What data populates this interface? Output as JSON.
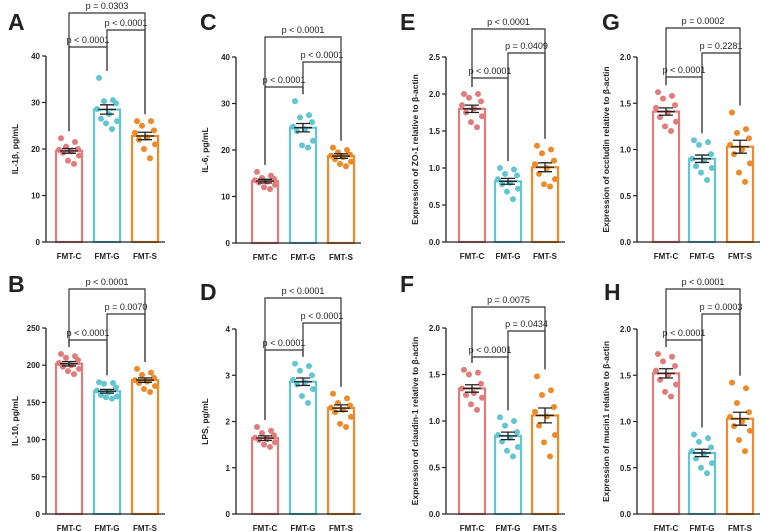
{
  "colors": {
    "FMT-C": "#e27b7b",
    "FMT-G": "#62c6d2",
    "FMT-S": "#f08a28",
    "axis": "#222222"
  },
  "chart_data": [
    {
      "panel": "A",
      "type": "bar",
      "ylabel": "IL-1β, pg/mL",
      "ylim": [
        0,
        40
      ],
      "yticks": [
        "0",
        "10",
        "20",
        "30",
        "40"
      ],
      "ytick_values": [
        0,
        10,
        20,
        30,
        40
      ],
      "categories": [
        "FMT-C",
        "FMT-G",
        "FMT-S"
      ],
      "means": [
        19.6,
        28.5,
        22.8
      ],
      "sem": [
        0.5,
        1.0,
        0.8
      ],
      "points": [
        [
          22.3,
          21.5,
          20.5,
          20,
          19.8,
          19.5,
          19.2,
          18.6,
          17.5,
          16.8
        ],
        [
          35.3,
          30.5,
          30.3,
          29.8,
          28.6,
          27.5,
          26.5,
          26,
          25.5,
          24.3
        ],
        [
          26,
          26,
          25,
          24,
          23.5,
          22.5,
          22,
          21,
          20,
          18
        ]
      ],
      "comparisons": [
        {
          "pair": [
            0,
            2
          ],
          "label": "p = 0.0303"
        },
        {
          "pair": [
            1,
            2
          ],
          "label": "p < 0.0001"
        },
        {
          "pair": [
            0,
            1
          ],
          "label": "p < 0.0001"
        }
      ]
    },
    {
      "panel": "C",
      "type": "bar",
      "ylabel": "IL-6, pg/mL",
      "ylim": [
        0,
        40
      ],
      "yticks": [
        "0",
        "10",
        "20",
        "30",
        "40"
      ],
      "ytick_values": [
        0,
        10,
        20,
        30,
        40
      ],
      "categories": [
        "FMT-C",
        "FMT-G",
        "FMT-S"
      ],
      "means": [
        13.3,
        24.8,
        18.7
      ],
      "sem": [
        0.4,
        0.9,
        0.5
      ],
      "points": [
        [
          15.3,
          14.5,
          14,
          13.8,
          13.5,
          13.2,
          13,
          12.5,
          12,
          11.6
        ],
        [
          30.5,
          27.5,
          27,
          26,
          25,
          24.5,
          24,
          22,
          21,
          20.5
        ],
        [
          20.5,
          20,
          19.5,
          19,
          18.8,
          18.5,
          18,
          17.5,
          17,
          16.5
        ]
      ],
      "comparisons": [
        {
          "pair": [
            0,
            2
          ],
          "label": "p < 0.0001"
        },
        {
          "pair": [
            1,
            2
          ],
          "label": "p < 0.0001"
        },
        {
          "pair": [
            0,
            1
          ],
          "label": "p < 0.0001"
        }
      ]
    },
    {
      "panel": "E",
      "type": "bar",
      "ylabel": "Expression of ZO-1 relative to β-actin",
      "ylim": [
        0,
        2.5
      ],
      "yticks": [
        "0.0",
        "0.5",
        "1.0",
        "1.5",
        "2.0",
        "2.5"
      ],
      "ytick_values": [
        0,
        0.5,
        1,
        1.5,
        2,
        2.5
      ],
      "categories": [
        "FMT-C",
        "FMT-G",
        "FMT-S"
      ],
      "means": [
        1.8,
        0.82,
        1.01
      ],
      "sem": [
        0.05,
        0.04,
        0.06
      ],
      "points": [
        [
          2.0,
          2.0,
          1.95,
          1.9,
          1.85,
          1.8,
          1.75,
          1.7,
          1.62,
          1.55
        ],
        [
          1.0,
          0.98,
          0.92,
          0.9,
          0.85,
          0.8,
          0.78,
          0.72,
          0.68,
          0.58
        ],
        [
          1.3,
          1.25,
          1.2,
          1.1,
          1.05,
          1.0,
          0.92,
          0.85,
          0.78,
          0.75
        ]
      ],
      "comparisons": [
        {
          "pair": [
            0,
            2
          ],
          "label": "p < 0.0001"
        },
        {
          "pair": [
            1,
            2
          ],
          "label": "p = 0.0409"
        },
        {
          "pair": [
            0,
            1
          ],
          "label": "p < 0.0001"
        }
      ]
    },
    {
      "panel": "G",
      "type": "bar",
      "ylabel": "Expression of occludin relative to β-actin",
      "ylim": [
        0,
        2.0
      ],
      "yticks": [
        "0.0",
        "0.5",
        "1.0",
        "1.5",
        "2.0"
      ],
      "ytick_values": [
        0,
        0.5,
        1,
        1.5,
        2
      ],
      "categories": [
        "FMT-C",
        "FMT-G",
        "FMT-S"
      ],
      "means": [
        1.41,
        0.9,
        1.03
      ],
      "sem": [
        0.04,
        0.04,
        0.07
      ],
      "points": [
        [
          1.62,
          1.58,
          1.55,
          1.48,
          1.45,
          1.4,
          1.35,
          1.3,
          1.25,
          1.2
        ],
        [
          1.1,
          1.08,
          1.05,
          0.95,
          0.9,
          0.88,
          0.82,
          0.8,
          0.75,
          0.67
        ],
        [
          1.4,
          1.22,
          1.18,
          1.12,
          1.05,
          1.0,
          0.95,
          0.85,
          0.75,
          0.65
        ]
      ],
      "comparisons": [
        {
          "pair": [
            0,
            2
          ],
          "label": "p = 0.0002"
        },
        {
          "pair": [
            1,
            2
          ],
          "label": "p = 0.2281"
        },
        {
          "pair": [
            0,
            1
          ],
          "label": "p < 0.0001"
        }
      ]
    },
    {
      "panel": "B",
      "type": "bar",
      "ylabel": "IL-10, pg/mL",
      "ylim": [
        0,
        250
      ],
      "yticks": [
        "0",
        "50",
        "100",
        "150",
        "200",
        "250"
      ],
      "ytick_values": [
        0,
        50,
        100,
        150,
        200,
        250
      ],
      "categories": [
        "FMT-C",
        "FMT-G",
        "FMT-S"
      ],
      "means": [
        202,
        165,
        180
      ],
      "sem": [
        3,
        2.5,
        3
      ],
      "points": [
        [
          215,
          212,
          210,
          207,
          203,
          200,
          198,
          195,
          192,
          188
        ],
        [
          177,
          176,
          175,
          170,
          166,
          164,
          160,
          158,
          157,
          155
        ],
        [
          195,
          190,
          187,
          183,
          180,
          178,
          176,
          172,
          168,
          164
        ]
      ],
      "comparisons": [
        {
          "pair": [
            0,
            2
          ],
          "label": "p < 0.0001"
        },
        {
          "pair": [
            1,
            2
          ],
          "label": "p = 0.0070"
        },
        {
          "pair": [
            0,
            1
          ],
          "label": "p < 0.0001"
        }
      ]
    },
    {
      "panel": "D",
      "type": "bar",
      "ylabel": "LPS, pg/mL",
      "ylim": [
        0,
        4
      ],
      "yticks": [
        "0",
        "1",
        "2",
        "3",
        "4"
      ],
      "ytick_values": [
        0,
        1,
        2,
        3,
        4
      ],
      "categories": [
        "FMT-C",
        "FMT-G",
        "FMT-S"
      ],
      "means": [
        1.64,
        2.86,
        2.29
      ],
      "sem": [
        0.05,
        0.08,
        0.07
      ],
      "points": [
        [
          1.88,
          1.8,
          1.75,
          1.7,
          1.65,
          1.62,
          1.6,
          1.55,
          1.5,
          1.45
        ],
        [
          3.25,
          3.2,
          3.1,
          3.0,
          2.9,
          2.85,
          2.8,
          2.7,
          2.55,
          2.4
        ],
        [
          2.6,
          2.5,
          2.4,
          2.35,
          2.3,
          2.25,
          2.2,
          2.1,
          1.95,
          1.88
        ]
      ],
      "comparisons": [
        {
          "pair": [
            0,
            2
          ],
          "label": "p < 0.0001"
        },
        {
          "pair": [
            1,
            2
          ],
          "label": "p < 0.0001"
        },
        {
          "pair": [
            0,
            1
          ],
          "label": "p < 0.0001"
        }
      ]
    },
    {
      "panel": "F",
      "type": "bar",
      "ylabel": "Expression of claudin-1 relative to β-actin",
      "ylim": [
        0,
        2.0
      ],
      "yticks": [
        "0.0",
        "0.5",
        "1.0",
        "1.5",
        "2.0"
      ],
      "ytick_values": [
        0,
        0.5,
        1,
        1.5,
        2
      ],
      "categories": [
        "FMT-C",
        "FMT-G",
        "FMT-S"
      ],
      "means": [
        1.35,
        0.84,
        1.06
      ],
      "sem": [
        0.04,
        0.04,
        0.08
      ],
      "points": [
        [
          1.55,
          1.52,
          1.5,
          1.4,
          1.35,
          1.3,
          1.28,
          1.25,
          1.18,
          1.12
        ],
        [
          1.04,
          1.0,
          0.95,
          0.88,
          0.85,
          0.82,
          0.78,
          0.72,
          0.68,
          0.62
        ],
        [
          1.48,
          1.33,
          1.28,
          1.15,
          1.1,
          1.05,
          0.95,
          0.85,
          0.77,
          0.62
        ]
      ],
      "comparisons": [
        {
          "pair": [
            0,
            2
          ],
          "label": "p = 0.0075"
        },
        {
          "pair": [
            1,
            2
          ],
          "label": "p = 0.0434"
        },
        {
          "pair": [
            0,
            1
          ],
          "label": "p < 0.0001"
        }
      ]
    },
    {
      "panel": "H",
      "type": "bar",
      "ylabel": "Expression of mucin1 relative to β-actin",
      "ylim": [
        0,
        2.0
      ],
      "yticks": [
        "0.0",
        "0.5",
        "1.0",
        "1.5",
        "2.0"
      ],
      "ytick_values": [
        0,
        0.5,
        1,
        1.5,
        2
      ],
      "categories": [
        "FMT-C",
        "FMT-G",
        "FMT-S"
      ],
      "means": [
        1.52,
        0.66,
        1.03
      ],
      "sem": [
        0.05,
        0.04,
        0.07
      ],
      "points": [
        [
          1.73,
          1.7,
          1.65,
          1.6,
          1.55,
          1.5,
          1.45,
          1.4,
          1.32,
          1.27
        ],
        [
          0.86,
          0.82,
          0.78,
          0.72,
          0.68,
          0.65,
          0.6,
          0.55,
          0.5,
          0.44
        ],
        [
          1.42,
          1.36,
          1.2,
          1.1,
          1.05,
          1.0,
          0.95,
          0.9,
          0.8,
          0.68
        ]
      ],
      "comparisons": [
        {
          "pair": [
            0,
            2
          ],
          "label": "p < 0.0001"
        },
        {
          "pair": [
            1,
            2
          ],
          "label": "p = 0.0003"
        },
        {
          "pair": [
            0,
            1
          ],
          "label": "p < 0.0001"
        }
      ]
    }
  ]
}
